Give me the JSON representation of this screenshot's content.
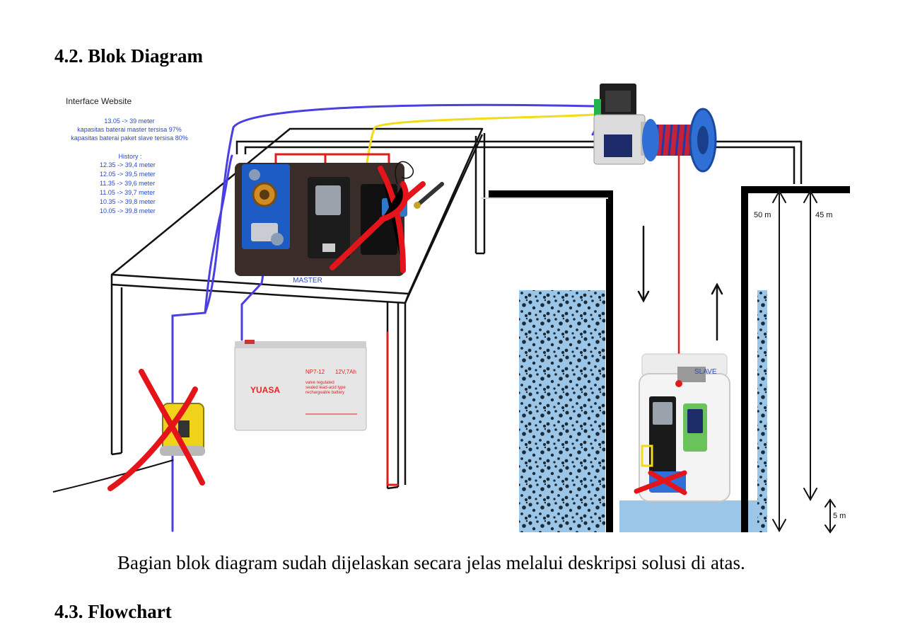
{
  "section_block": {
    "title": "4.2. Blok Diagram"
  },
  "caption": "Bagian blok diagram sudah dijelaskan secara jelas melalui deskripsi solusi di atas.",
  "section_flow": {
    "title": "4.3. Flowchart"
  },
  "diagram": {
    "interface": {
      "title": "Interface Website",
      "current": "13.05 ->  39 meter",
      "battery_master": "kapasitas baterai master tersisa 97%",
      "battery_slave": "kapasitas baterai paket slave tersisa 80%",
      "history_title": "History :",
      "history": [
        "12.35 -> 39,4 meter",
        "12.05 -> 39,5 meter",
        "11.35 -> 39,6 meter",
        "11.05 -> 39,7 meter",
        "10.35 -> 39,8 meter",
        "10.05 -> 39,8 meter"
      ]
    },
    "labels": {
      "master": "MASTER",
      "slave": "SLAVE",
      "depth_50": "50 m",
      "depth_45": "45 m",
      "depth_5": "5 m"
    },
    "battery": {
      "brand": "YUASA",
      "model": "NP7-12",
      "rating": "12V,7Ah",
      "desc1": "valve regulated",
      "desc2": "sealed lead-acid type",
      "desc3": "rechargeable battery"
    },
    "colors": {
      "wire_blue": "#4a3fe0",
      "wire_yellow": "#f2dc18",
      "wire_red": "#e21b1b",
      "wire_green": "#22c03a",
      "cross": "#e5141b",
      "water": "#9cc6e8",
      "interface_text": "#2a49c9"
    }
  }
}
